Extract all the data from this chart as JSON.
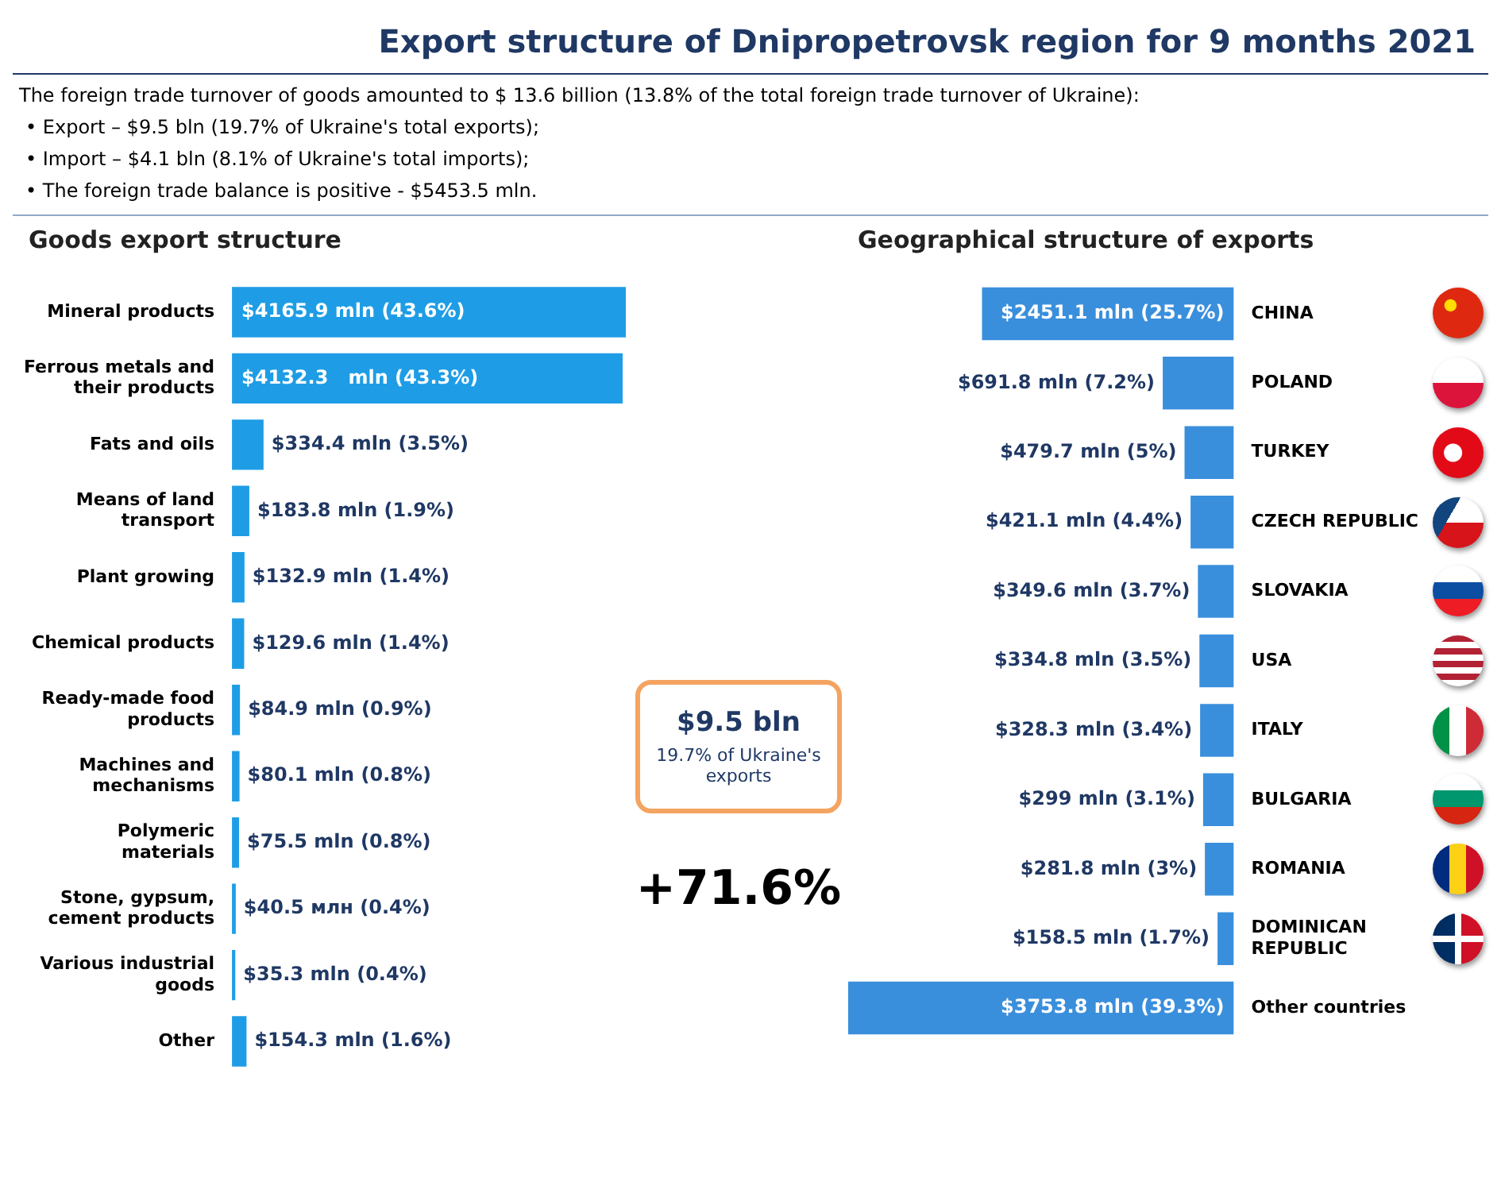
{
  "chart_data": [
    {
      "type": "other",
      "title": "Export structure of Dnipropetrovsk region for 9 months 2021",
      "annotations": [
        "The foreign trade turnover  of goods amounted  to $ 13.6 billion (13.8% of the total foreign trade turnover  of Ukraine):",
        "• Export – $9.5 bln (19.7% of Ukraine's total exports);",
        "• Import  – $4.1 bln (8.1% of Ukraine's total imports);",
        "• The foreign trade balance is positive - $5453.5 mln.",
        "$9.5 bln",
        "19.7% of Ukraine's exports",
        "+71.6%"
      ]
    },
    {
      "type": "bar",
      "orientation": "horizontal",
      "title": "Goods export structure",
      "color": "#1e9de6",
      "tick_labels": "y",
      "categories": [
        "Mineral products",
        "Ferrous metals and their products",
        "Fats and oils",
        "Means of land transport",
        "Plant growing",
        "Chemical products",
        "Ready-made food products",
        "Machines and mechanisms",
        "Polymeric materials",
        "Stone, gypsum, cement products",
        "Various industrial goods",
        "Other"
      ],
      "values": [
        4165.9,
        4132.3,
        334.4,
        183.8,
        132.9,
        129.6,
        84.9,
        80.1,
        75.5,
        40.5,
        35.3,
        154.3
      ],
      "value_labels": [
        "$4165.9 mln (43.6%)",
        "$4132.3   mln (43.3%)",
        "$334.4 mln (3.5%)",
        "$183.8 mln (1.9%)",
        "$132.9 mln (1.4%)",
        "$129.6 mln (1.4%)",
        "$84.9 mln (0.9%)",
        "$80.1 mln (0.8%)",
        "$75.5 mln (0.8%)",
        "$40.5 млн (0.4%)",
        "$35.3 mln (0.4%)",
        "$154.3 mln (1.6%)"
      ]
    },
    {
      "type": "bar",
      "orientation": "horizontal",
      "title": "Geographical structure of exports",
      "color": "#3a8fdc",
      "tick_labels": "y",
      "categories": [
        "CHINA",
        "POLAND",
        "TURKEY",
        "CZECH REPUBLIC",
        "SLOVAKIA",
        "USA",
        "ITALY",
        "BULGARIA",
        "ROMANIA",
        "DOMINICAN REPUBLIC",
        "Other countries"
      ],
      "values": [
        2451.1,
        691.8,
        479.7,
        421.1,
        349.6,
        334.8,
        328.3,
        299,
        281.8,
        158.5,
        3753.8
      ],
      "value_labels": [
        "$2451.1 mln (25.7%)",
        "$691.8 mln (7.2%)",
        "$479.7 mln (5%)",
        "$421.1 mln (4.4%)",
        "$349.6 mln (3.7%)",
        "$334.8 mln (3.5%)",
        "$328.3 mln (3.4%)",
        "$299 mln (3.1%)",
        "$281.8 mln (3%)",
        "$158.5 mln (1.7%)",
        "$3753.8 mln (39.3%)"
      ]
    }
  ]
}
